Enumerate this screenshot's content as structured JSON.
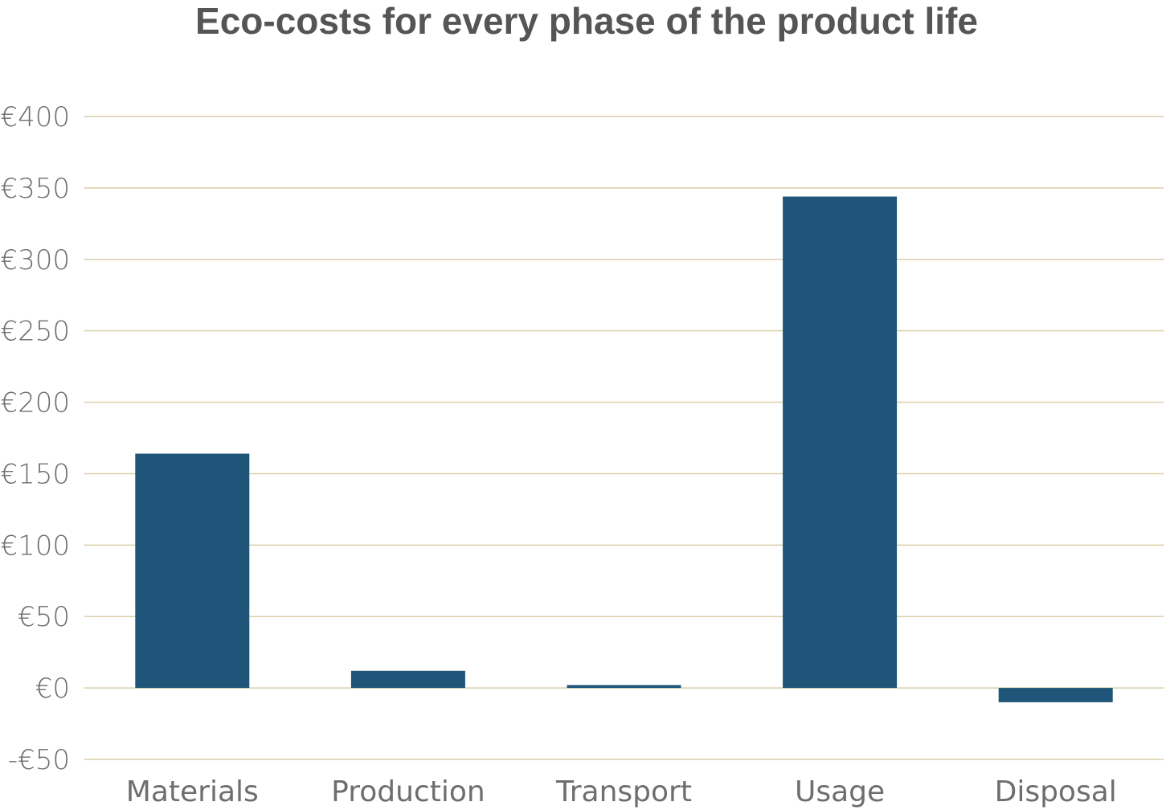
{
  "chart_data": {
    "type": "bar",
    "title": "Eco-costs for every phase of the product life",
    "categories": [
      "Materials",
      "Production",
      "Transport",
      "Usage",
      "Disposal"
    ],
    "values": [
      164,
      12,
      2,
      344,
      -10
    ],
    "ylim": [
      -50,
      400
    ],
    "yticks": [
      400,
      350,
      300,
      250,
      200,
      150,
      100,
      50,
      0,
      -50
    ],
    "ytick_labels": [
      "€400",
      "€350",
      "€300",
      "€250",
      "€200",
      "€150",
      "€100",
      "€50",
      "€0",
      "-€50"
    ],
    "grid": true,
    "bar_color": "#1e5578",
    "grid_color": "#d9cfa8",
    "xlabel": "",
    "ylabel": ""
  }
}
